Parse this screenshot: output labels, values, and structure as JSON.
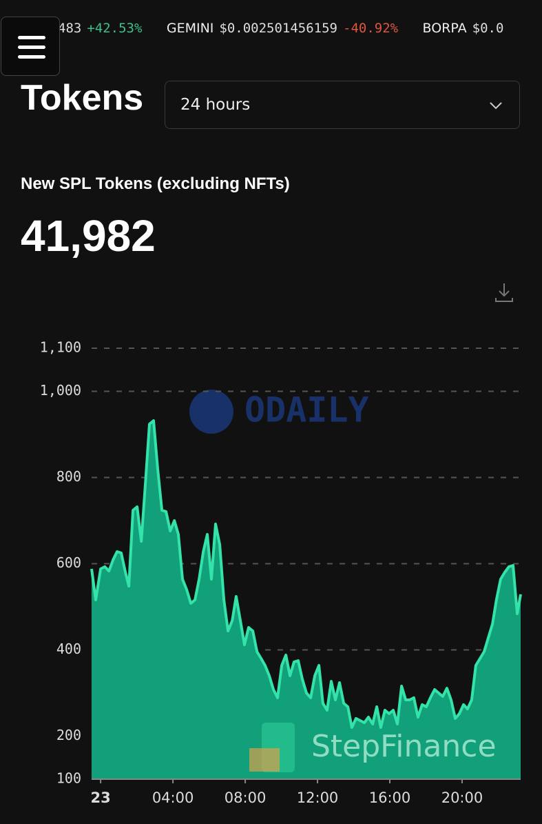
{
  "ticker": [
    {
      "price": "483",
      "change": "+42.53%"
    },
    {
      "name": "GEMINI",
      "price": "$0.002501456159",
      "change": "-40.92%"
    },
    {
      "name": "BORPA",
      "price": "$0.0"
    }
  ],
  "header": {
    "title": "Tokens",
    "period": "24 hours"
  },
  "stat": {
    "label": "New SPL Tokens (excluding NFTs)",
    "value": "41,982"
  },
  "watermarks": [
    "ODAILY",
    "StepFinance"
  ],
  "chart_data": {
    "type": "area",
    "color": "#34e3aa",
    "fill": "#12a07a",
    "x": [
      -0.5,
      -0.27,
      0,
      0.23,
      0.46,
      0.69,
      0.91,
      1.14,
      1.37,
      1.56,
      1.79,
      2.02,
      2.25,
      2.48,
      2.7,
      2.93,
      3.16,
      3.39,
      3.62,
      3.85,
      4.08,
      4.3,
      4.53,
      4.76,
      4.99,
      5.22,
      5.45,
      5.68,
      5.9,
      6.13,
      6.36,
      6.59,
      6.82,
      7.05,
      7.28,
      7.5,
      7.73,
      7.96,
      8.19,
      8.42,
      8.65,
      8.88,
      9.1,
      9.33,
      9.56,
      9.79,
      10.02,
      10.25,
      10.48,
      10.7,
      10.93,
      11.16,
      11.39,
      11.62,
      11.85,
      12.08,
      12.3,
      12.53,
      12.76,
      12.99,
      13.22,
      13.45,
      13.68,
      13.9,
      14.13,
      14.36,
      14.59,
      14.82,
      15.05,
      15.28,
      15.5,
      15.73,
      15.96,
      16.19,
      16.42,
      16.65,
      16.88,
      17.1,
      17.33,
      17.56,
      17.79,
      18.02,
      18.25,
      18.48,
      18.7,
      18.93,
      19.16,
      19.39,
      19.62,
      19.85,
      20.08,
      20.3,
      20.53,
      20.76,
      20.99,
      21.22,
      21.45,
      21.68,
      21.9,
      22.13,
      22.36,
      22.59,
      22.82,
      23.05,
      23.24
    ],
    "values": [
      588,
      516,
      588,
      593,
      583,
      609,
      628,
      625,
      580,
      548,
      724,
      732,
      652,
      788,
      924,
      932,
      820,
      724,
      721,
      676,
      700,
      668,
      564,
      540,
      508,
      516,
      564,
      628,
      668,
      564,
      692,
      644,
      516,
      444,
      468,
      524,
      468,
      412,
      452,
      444,
      396,
      380,
      364,
      340,
      308,
      289,
      364,
      388,
      340,
      372,
      375,
      332,
      300,
      289,
      340,
      364,
      276,
      260,
      327,
      284,
      324,
      276,
      268,
      220,
      241,
      236,
      231,
      244,
      228,
      268,
      220,
      260,
      252,
      260,
      228,
      316,
      284,
      284,
      289,
      244,
      273,
      268,
      289,
      308,
      300,
      292,
      311,
      284,
      241,
      252,
      273,
      263,
      284,
      364,
      380,
      396,
      428,
      460,
      516,
      564,
      580,
      593,
      596,
      484,
      529
    ],
    "xlim": [
      -0.5,
      23.24
    ],
    "ylim": [
      100,
      1100
    ],
    "xticks": [
      {
        "value": 0,
        "label": "23"
      },
      {
        "value": 4,
        "label": "04:00"
      },
      {
        "value": 8,
        "label": "08:00"
      },
      {
        "value": 12,
        "label": "12:00"
      },
      {
        "value": 16,
        "label": "16:00"
      },
      {
        "value": 20,
        "label": "20:00"
      }
    ],
    "yticks": [
      100,
      200,
      400,
      600,
      800,
      {
        "value": 1000,
        "label": "1,000"
      },
      {
        "value": 1100,
        "label": "1,100"
      }
    ],
    "grid": true
  }
}
